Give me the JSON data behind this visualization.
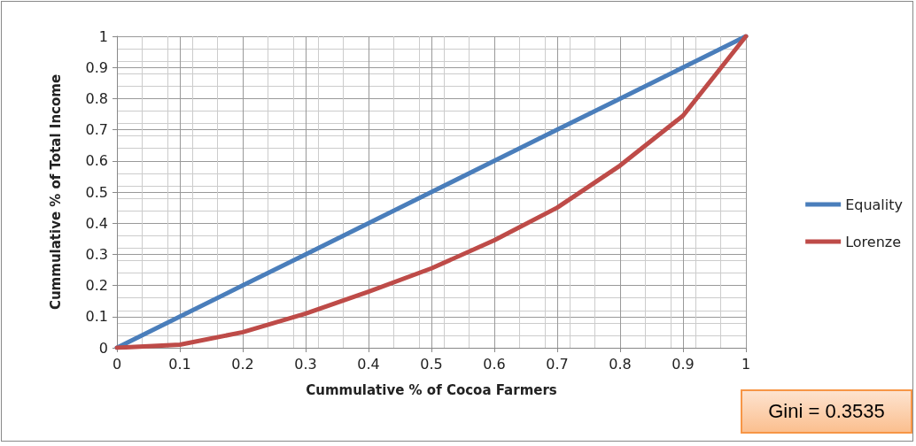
{
  "chart_data": {
    "type": "line",
    "xlabel": "Cummulative % of Cocoa Farmers",
    "ylabel": "Cummulative % of Total Income",
    "x": [
      0,
      0.1,
      0.2,
      0.3,
      0.4,
      0.5,
      0.6,
      0.7,
      0.8,
      0.9,
      1
    ],
    "series": [
      {
        "name": "Equality",
        "color": "#4a7ebb",
        "values": [
          0,
          0.1,
          0.2,
          0.3,
          0.4,
          0.5,
          0.6,
          0.7,
          0.8,
          0.9,
          1
        ]
      },
      {
        "name": "Lorenze",
        "color": "#be4b48",
        "values": [
          0,
          0.01,
          0.05,
          0.11,
          0.18,
          0.255,
          0.345,
          0.45,
          0.585,
          0.745,
          1
        ]
      }
    ],
    "xlim": [
      0,
      1
    ],
    "xticks": [
      0,
      0.1,
      0.2,
      0.3,
      0.4,
      0.5,
      0.6,
      0.7,
      0.8,
      0.9,
      1
    ],
    "ylim": [
      0,
      1
    ],
    "yticks": [
      0,
      0.1,
      0.2,
      0.3,
      0.4,
      0.5,
      0.6,
      0.7,
      0.8,
      0.9,
      1
    ],
    "grid": true,
    "legend": "right",
    "marker": "none",
    "line_style": "solid",
    "annotations": [
      "Gini = 0.3535"
    ]
  }
}
